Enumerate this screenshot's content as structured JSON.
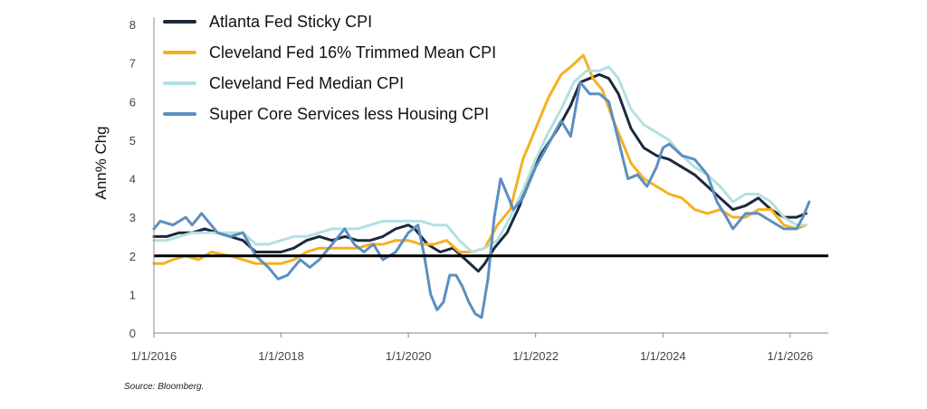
{
  "chart_data": {
    "type": "line",
    "title": "",
    "xlabel": "",
    "ylabel": "Ann% Chg",
    "ylim": [
      0,
      8
    ],
    "yticks": [
      0,
      1,
      2,
      3,
      4,
      5,
      6,
      7,
      8
    ],
    "xlim": [
      2016.0,
      2026.6
    ],
    "xticks": [
      {
        "value": 2016,
        "label": "1/1/2016"
      },
      {
        "value": 2018,
        "label": "1/1/2018"
      },
      {
        "value": 2020,
        "label": "1/1/2020"
      },
      {
        "value": 2022,
        "label": "1/1/2022"
      },
      {
        "value": 2024,
        "label": "1/1/2024"
      },
      {
        "value": 2026,
        "label": "1/1/2026"
      }
    ],
    "grid": false,
    "legend_position": "top-left",
    "reference_line": {
      "y": 2,
      "color": "#000000"
    },
    "series": [
      {
        "name": "Atlanta Fed Sticky CPI",
        "color": "#1b2a3d",
        "points": [
          [
            2016.0,
            2.5
          ],
          [
            2016.2,
            2.5
          ],
          [
            2016.4,
            2.6
          ],
          [
            2016.6,
            2.6
          ],
          [
            2016.8,
            2.7
          ],
          [
            2017.0,
            2.6
          ],
          [
            2017.2,
            2.5
          ],
          [
            2017.4,
            2.4
          ],
          [
            2017.6,
            2.1
          ],
          [
            2017.8,
            2.1
          ],
          [
            2018.0,
            2.1
          ],
          [
            2018.2,
            2.2
          ],
          [
            2018.4,
            2.4
          ],
          [
            2018.6,
            2.5
          ],
          [
            2018.8,
            2.4
          ],
          [
            2019.0,
            2.5
          ],
          [
            2019.2,
            2.4
          ],
          [
            2019.4,
            2.4
          ],
          [
            2019.6,
            2.5
          ],
          [
            2019.8,
            2.7
          ],
          [
            2020.0,
            2.8
          ],
          [
            2020.1,
            2.7
          ],
          [
            2020.3,
            2.3
          ],
          [
            2020.5,
            2.1
          ],
          [
            2020.7,
            2.2
          ],
          [
            2020.9,
            1.9
          ],
          [
            2021.1,
            1.6
          ],
          [
            2021.2,
            1.8
          ],
          [
            2021.35,
            2.2
          ],
          [
            2021.55,
            2.6
          ],
          [
            2021.75,
            3.3
          ],
          [
            2021.95,
            4.3
          ],
          [
            2022.15,
            4.8
          ],
          [
            2022.35,
            5.3
          ],
          [
            2022.55,
            5.9
          ],
          [
            2022.7,
            6.5
          ],
          [
            2022.85,
            6.6
          ],
          [
            2023.0,
            6.7
          ],
          [
            2023.15,
            6.6
          ],
          [
            2023.3,
            6.2
          ],
          [
            2023.5,
            5.3
          ],
          [
            2023.7,
            4.8
          ],
          [
            2023.9,
            4.6
          ],
          [
            2024.1,
            4.5
          ],
          [
            2024.3,
            4.3
          ],
          [
            2024.5,
            4.1
          ],
          [
            2024.7,
            3.8
          ],
          [
            2024.9,
            3.5
          ],
          [
            2025.1,
            3.2
          ],
          [
            2025.3,
            3.3
          ],
          [
            2025.5,
            3.5
          ],
          [
            2025.7,
            3.2
          ],
          [
            2025.9,
            3.0
          ],
          [
            2026.1,
            3.0
          ],
          [
            2026.25,
            3.1
          ]
        ]
      },
      {
        "name": "Cleveland Fed 16% Trimmed Mean CPI",
        "color": "#f5b021",
        "points": [
          [
            2016.0,
            1.8
          ],
          [
            2016.15,
            1.8
          ],
          [
            2016.3,
            1.9
          ],
          [
            2016.5,
            2.0
          ],
          [
            2016.7,
            1.9
          ],
          [
            2016.9,
            2.1
          ],
          [
            2017.2,
            2.0
          ],
          [
            2017.4,
            1.9
          ],
          [
            2017.6,
            1.8
          ],
          [
            2017.8,
            1.8
          ],
          [
            2018.0,
            1.8
          ],
          [
            2018.2,
            1.9
          ],
          [
            2018.4,
            2.1
          ],
          [
            2018.6,
            2.2
          ],
          [
            2018.8,
            2.2
          ],
          [
            2019.0,
            2.2
          ],
          [
            2019.2,
            2.2
          ],
          [
            2019.4,
            2.3
          ],
          [
            2019.6,
            2.3
          ],
          [
            2019.8,
            2.4
          ],
          [
            2020.0,
            2.4
          ],
          [
            2020.2,
            2.3
          ],
          [
            2020.4,
            2.3
          ],
          [
            2020.6,
            2.4
          ],
          [
            2020.8,
            2.1
          ],
          [
            2021.0,
            2.1
          ],
          [
            2021.2,
            2.2
          ],
          [
            2021.4,
            2.8
          ],
          [
            2021.6,
            3.2
          ],
          [
            2021.8,
            4.5
          ],
          [
            2022.0,
            5.3
          ],
          [
            2022.2,
            6.1
          ],
          [
            2022.4,
            6.7
          ],
          [
            2022.55,
            6.9
          ],
          [
            2022.75,
            7.2
          ],
          [
            2022.9,
            6.6
          ],
          [
            2023.05,
            6.3
          ],
          [
            2023.2,
            5.6
          ],
          [
            2023.35,
            5.0
          ],
          [
            2023.5,
            4.4
          ],
          [
            2023.7,
            4.0
          ],
          [
            2023.9,
            3.8
          ],
          [
            2024.1,
            3.6
          ],
          [
            2024.3,
            3.5
          ],
          [
            2024.5,
            3.2
          ],
          [
            2024.7,
            3.1
          ],
          [
            2024.9,
            3.2
          ],
          [
            2025.1,
            3.0
          ],
          [
            2025.3,
            3.0
          ],
          [
            2025.5,
            3.2
          ],
          [
            2025.7,
            3.2
          ],
          [
            2025.9,
            2.8
          ],
          [
            2026.1,
            2.7
          ],
          [
            2026.25,
            2.8
          ]
        ]
      },
      {
        "name": "Cleveland Fed Median CPI",
        "color": "#b4e0e1",
        "points": [
          [
            2016.0,
            2.4
          ],
          [
            2016.2,
            2.4
          ],
          [
            2016.4,
            2.5
          ],
          [
            2016.6,
            2.6
          ],
          [
            2016.8,
            2.6
          ],
          [
            2017.0,
            2.6
          ],
          [
            2017.2,
            2.6
          ],
          [
            2017.4,
            2.6
          ],
          [
            2017.6,
            2.3
          ],
          [
            2017.8,
            2.3
          ],
          [
            2018.0,
            2.4
          ],
          [
            2018.2,
            2.5
          ],
          [
            2018.4,
            2.5
          ],
          [
            2018.6,
            2.6
          ],
          [
            2018.8,
            2.7
          ],
          [
            2019.0,
            2.7
          ],
          [
            2019.2,
            2.7
          ],
          [
            2019.4,
            2.8
          ],
          [
            2019.6,
            2.9
          ],
          [
            2019.8,
            2.9
          ],
          [
            2020.0,
            2.9
          ],
          [
            2020.2,
            2.9
          ],
          [
            2020.4,
            2.8
          ],
          [
            2020.6,
            2.8
          ],
          [
            2020.8,
            2.4
          ],
          [
            2021.0,
            2.1
          ],
          [
            2021.2,
            2.2
          ],
          [
            2021.4,
            2.4
          ],
          [
            2021.6,
            3.0
          ],
          [
            2021.8,
            3.7
          ],
          [
            2022.0,
            4.5
          ],
          [
            2022.2,
            5.2
          ],
          [
            2022.4,
            5.8
          ],
          [
            2022.6,
            6.5
          ],
          [
            2022.8,
            6.8
          ],
          [
            2023.0,
            6.8
          ],
          [
            2023.15,
            6.9
          ],
          [
            2023.3,
            6.6
          ],
          [
            2023.5,
            5.8
          ],
          [
            2023.7,
            5.4
          ],
          [
            2023.9,
            5.2
          ],
          [
            2024.1,
            5.0
          ],
          [
            2024.3,
            4.6
          ],
          [
            2024.5,
            4.3
          ],
          [
            2024.7,
            4.1
          ],
          [
            2024.9,
            3.8
          ],
          [
            2025.1,
            3.4
          ],
          [
            2025.3,
            3.6
          ],
          [
            2025.5,
            3.6
          ],
          [
            2025.7,
            3.4
          ],
          [
            2025.9,
            3.0
          ],
          [
            2026.1,
            2.8
          ],
          [
            2026.25,
            2.8
          ]
        ]
      },
      {
        "name": "Super Core Services less Housing CPI",
        "color": "#5b8fc2",
        "points": [
          [
            2016.0,
            2.7
          ],
          [
            2016.1,
            2.9
          ],
          [
            2016.3,
            2.8
          ],
          [
            2016.5,
            3.0
          ],
          [
            2016.6,
            2.8
          ],
          [
            2016.75,
            3.1
          ],
          [
            2016.9,
            2.8
          ],
          [
            2017.0,
            2.6
          ],
          [
            2017.2,
            2.5
          ],
          [
            2017.4,
            2.6
          ],
          [
            2017.6,
            2.0
          ],
          [
            2017.8,
            1.7
          ],
          [
            2017.95,
            1.4
          ],
          [
            2018.1,
            1.5
          ],
          [
            2018.3,
            1.9
          ],
          [
            2018.45,
            1.7
          ],
          [
            2018.6,
            1.9
          ],
          [
            2018.8,
            2.3
          ],
          [
            2019.0,
            2.7
          ],
          [
            2019.15,
            2.3
          ],
          [
            2019.3,
            2.1
          ],
          [
            2019.45,
            2.3
          ],
          [
            2019.6,
            1.9
          ],
          [
            2019.8,
            2.1
          ],
          [
            2020.0,
            2.6
          ],
          [
            2020.15,
            2.8
          ],
          [
            2020.25,
            2.0
          ],
          [
            2020.35,
            1.0
          ],
          [
            2020.45,
            0.6
          ],
          [
            2020.55,
            0.8
          ],
          [
            2020.65,
            1.5
          ],
          [
            2020.75,
            1.5
          ],
          [
            2020.85,
            1.2
          ],
          [
            2020.95,
            0.8
          ],
          [
            2021.05,
            0.5
          ],
          [
            2021.15,
            0.4
          ],
          [
            2021.25,
            1.4
          ],
          [
            2021.35,
            3.0
          ],
          [
            2021.45,
            4.0
          ],
          [
            2021.55,
            3.6
          ],
          [
            2021.65,
            3.2
          ],
          [
            2021.8,
            3.5
          ],
          [
            2022.0,
            4.3
          ],
          [
            2022.2,
            4.9
          ],
          [
            2022.4,
            5.5
          ],
          [
            2022.55,
            5.1
          ],
          [
            2022.7,
            6.5
          ],
          [
            2022.85,
            6.2
          ],
          [
            2023.0,
            6.2
          ],
          [
            2023.15,
            6.0
          ],
          [
            2023.3,
            5.0
          ],
          [
            2023.45,
            4.0
          ],
          [
            2023.6,
            4.1
          ],
          [
            2023.75,
            3.8
          ],
          [
            2023.9,
            4.3
          ],
          [
            2024.0,
            4.8
          ],
          [
            2024.1,
            4.9
          ],
          [
            2024.3,
            4.6
          ],
          [
            2024.5,
            4.5
          ],
          [
            2024.7,
            4.1
          ],
          [
            2024.85,
            3.4
          ],
          [
            2025.0,
            3.0
          ],
          [
            2025.1,
            2.7
          ],
          [
            2025.3,
            3.1
          ],
          [
            2025.5,
            3.1
          ],
          [
            2025.7,
            2.9
          ],
          [
            2025.9,
            2.7
          ],
          [
            2026.1,
            2.7
          ],
          [
            2026.2,
            3.0
          ],
          [
            2026.3,
            3.4
          ]
        ]
      }
    ]
  },
  "source": "Source: Bloomberg."
}
